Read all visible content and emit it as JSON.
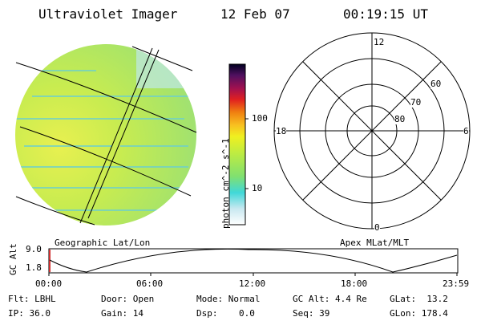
{
  "header": {
    "title": "Ultraviolet Imager",
    "date": "12 Feb 07",
    "time": "00:19:15 UT"
  },
  "colorbar": {
    "unit_label": "photon cm^-2 s^-1",
    "ticks": [
      "100",
      "10"
    ]
  },
  "left_panel": {
    "label": "Geographic Lat/Lon"
  },
  "right_panel": {
    "label": "Apex MLat/MLT",
    "mlt_labels": {
      "top": "12",
      "left": "18",
      "right": "6",
      "bottom": "0"
    },
    "mlat_labels": [
      "60",
      "70",
      "80"
    ]
  },
  "timeline": {
    "ylabel": "GC Alt",
    "yticks": [
      "9.0",
      "1.8"
    ],
    "xticks": [
      "00:00",
      "06:00",
      "12:00",
      "18:00",
      "23:59"
    ]
  },
  "status": {
    "flt_label": "Flt:",
    "flt_value": "LBHL",
    "ip_label": "IP:",
    "ip_value": "36.0",
    "door_label": "Door:",
    "door_value": "Open",
    "gain_label": "Gain:",
    "gain_value": "14",
    "mode_label": "Mode:",
    "mode_value": "Normal",
    "dsp_label": "Dsp:",
    "dsp_value": "0.0",
    "gcalt_label": "GC Alt:",
    "gcalt_value": "4.4 Re",
    "seq_label": "Seq:",
    "seq_value": "39",
    "glat_label": "GLat:",
    "glat_value": "13.2",
    "glon_label": "GLon:",
    "glon_value": "178.4"
  }
}
